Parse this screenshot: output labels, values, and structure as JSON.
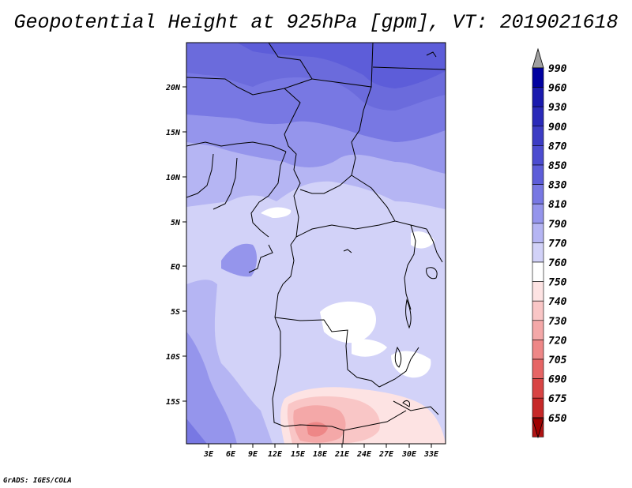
{
  "title": "Geopotential Height at 925hPa [gpm], VT: 2019021618",
  "credit": "GrADS: IGES/COLA",
  "map": {
    "lat_labels": [
      "20N",
      "15N",
      "10N",
      "5N",
      "EQ",
      "5S",
      "10S",
      "15S"
    ],
    "lon_labels": [
      "3E",
      "6E",
      "9E",
      "12E",
      "15E",
      "18E",
      "21E",
      "24E",
      "27E",
      "30E",
      "33E"
    ]
  },
  "colorbar": {
    "levels": [
      "990",
      "960",
      "930",
      "900",
      "870",
      "850",
      "830",
      "810",
      "790",
      "770",
      "760",
      "750",
      "740",
      "730",
      "720",
      "705",
      "690",
      "675",
      "650"
    ],
    "colors": [
      "#0000a0",
      "#1a1aae",
      "#2a2ab9",
      "#3c3cc4",
      "#4c4cd0",
      "#5d5dd9",
      "#7878e3",
      "#9595ec",
      "#b5b5f3",
      "#d2d2f8",
      "#ffffff",
      "#fde3e3",
      "#f9c6c6",
      "#f4a8a8",
      "#ee8787",
      "#e66565",
      "#d84444",
      "#c62828",
      "#b01414"
    ],
    "top_arrow_color": "#a0a0a0",
    "bottom_arrow_color": "#a00000"
  }
}
